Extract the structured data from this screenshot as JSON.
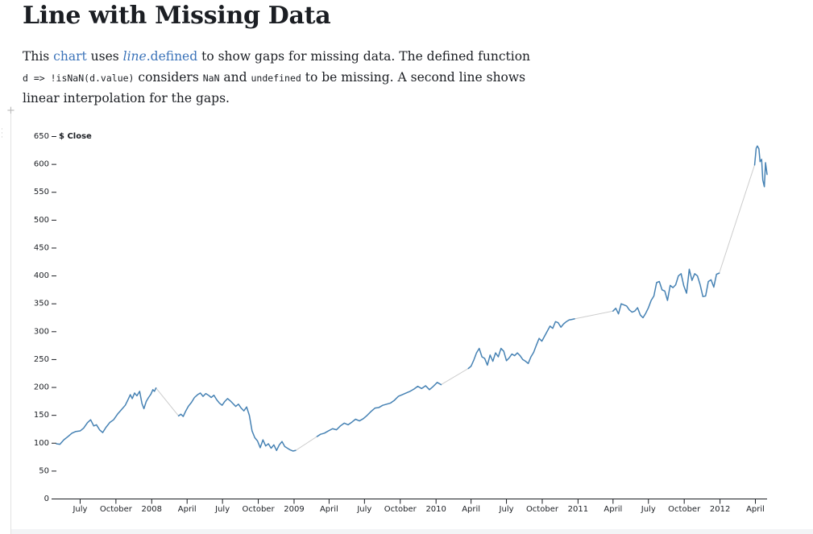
{
  "page": {
    "title": "Line with Missing Data",
    "intro": {
      "t1": "This ",
      "link_chart": "chart",
      "t2": " uses ",
      "link_line": "line",
      "link_defined": ".defined",
      "t3": " to show gaps for missing data. The defined function ",
      "code1": "d => !isNaN(d.value)",
      "t4": " considers ",
      "code2": "NaN",
      "t5": " and ",
      "code3": "undefined",
      "t6": " to be missing. A second line shows linear interpolation for the gaps."
    }
  },
  "chart_data": {
    "type": "line",
    "ylabel": "$ Close",
    "ylim": [
      0,
      650
    ],
    "y_ticks": [
      0,
      50,
      100,
      150,
      200,
      250,
      300,
      350,
      400,
      450,
      500,
      550,
      600,
      650
    ],
    "xlim": [
      "2007-05-01",
      "2012-05-01"
    ],
    "x_ticks": [
      {
        "date": "2007-07-01",
        "label": "July"
      },
      {
        "date": "2007-10-01",
        "label": "October"
      },
      {
        "date": "2008-01-01",
        "label": "2008"
      },
      {
        "date": "2008-04-01",
        "label": "April"
      },
      {
        "date": "2008-07-01",
        "label": "July"
      },
      {
        "date": "2008-10-01",
        "label": "October"
      },
      {
        "date": "2009-01-01",
        "label": "2009"
      },
      {
        "date": "2009-04-01",
        "label": "April"
      },
      {
        "date": "2009-07-01",
        "label": "July"
      },
      {
        "date": "2009-10-01",
        "label": "October"
      },
      {
        "date": "2010-01-01",
        "label": "2010"
      },
      {
        "date": "2010-04-01",
        "label": "April"
      },
      {
        "date": "2010-07-01",
        "label": "July"
      },
      {
        "date": "2010-10-01",
        "label": "October"
      },
      {
        "date": "2011-01-01",
        "label": "2011"
      },
      {
        "date": "2011-04-01",
        "label": "April"
      },
      {
        "date": "2011-07-01",
        "label": "July"
      },
      {
        "date": "2011-10-01",
        "label": "October"
      },
      {
        "date": "2012-01-01",
        "label": "2012"
      },
      {
        "date": "2012-04-01",
        "label": "April"
      }
    ],
    "colors": {
      "line": "#4682b4",
      "interpolation": "#cccccc",
      "axis": "#1b1e23"
    },
    "segments": [
      [
        [
          "2007-05-01",
          99
        ],
        [
          "2007-05-10",
          98
        ],
        [
          "2007-05-20",
          106
        ],
        [
          "2007-05-31",
          112
        ],
        [
          "2007-06-10",
          118
        ],
        [
          "2007-06-20",
          121
        ],
        [
          "2007-07-01",
          122
        ],
        [
          "2007-07-10",
          127
        ],
        [
          "2007-07-20",
          137
        ],
        [
          "2007-07-28",
          142
        ],
        [
          "2007-08-05",
          131
        ],
        [
          "2007-08-12",
          133
        ],
        [
          "2007-08-20",
          124
        ],
        [
          "2007-08-28",
          119
        ],
        [
          "2007-09-05",
          128
        ],
        [
          "2007-09-15",
          137
        ],
        [
          "2007-09-25",
          142
        ],
        [
          "2007-10-05",
          152
        ],
        [
          "2007-10-15",
          160
        ],
        [
          "2007-10-25",
          168
        ],
        [
          "2007-11-01",
          178
        ],
        [
          "2007-11-07",
          187
        ],
        [
          "2007-11-12",
          180
        ],
        [
          "2007-11-18",
          190
        ],
        [
          "2007-11-24",
          185
        ],
        [
          "2007-12-01",
          193
        ],
        [
          "2007-12-07",
          171
        ],
        [
          "2007-12-12",
          162
        ],
        [
          "2007-12-18",
          175
        ],
        [
          "2007-12-24",
          182
        ],
        [
          "2007-12-30",
          188
        ],
        [
          "2008-01-04",
          196
        ],
        [
          "2008-01-08",
          193
        ],
        [
          "2008-01-12",
          199
        ]
      ],
      [
        [
          "2008-03-10",
          149
        ],
        [
          "2008-03-16",
          152
        ],
        [
          "2008-03-22",
          148
        ],
        [
          "2008-03-28",
          157
        ],
        [
          "2008-04-04",
          166
        ],
        [
          "2008-04-12",
          173
        ],
        [
          "2008-04-20",
          182
        ],
        [
          "2008-04-28",
          187
        ],
        [
          "2008-05-05",
          190
        ],
        [
          "2008-05-12",
          184
        ],
        [
          "2008-05-19",
          189
        ],
        [
          "2008-05-26",
          186
        ],
        [
          "2008-06-02",
          182
        ],
        [
          "2008-06-09",
          186
        ],
        [
          "2008-06-16",
          178
        ],
        [
          "2008-06-23",
          172
        ],
        [
          "2008-06-30",
          168
        ],
        [
          "2008-07-07",
          175
        ],
        [
          "2008-07-14",
          180
        ],
        [
          "2008-07-21",
          176
        ],
        [
          "2008-07-28",
          171
        ],
        [
          "2008-08-04",
          166
        ],
        [
          "2008-08-11",
          170
        ],
        [
          "2008-08-18",
          163
        ],
        [
          "2008-08-25",
          158
        ],
        [
          "2008-09-01",
          165
        ],
        [
          "2008-09-08",
          150
        ],
        [
          "2008-09-15",
          122
        ],
        [
          "2008-09-22",
          110
        ],
        [
          "2008-09-29",
          104
        ],
        [
          "2008-10-06",
          92
        ],
        [
          "2008-10-13",
          106
        ],
        [
          "2008-10-20",
          95
        ],
        [
          "2008-10-27",
          99
        ],
        [
          "2008-11-03",
          91
        ],
        [
          "2008-11-10",
          97
        ],
        [
          "2008-11-17",
          87
        ],
        [
          "2008-11-24",
          97
        ],
        [
          "2008-12-01",
          103
        ],
        [
          "2008-12-08",
          94
        ],
        [
          "2008-12-15",
          91
        ],
        [
          "2008-12-22",
          88
        ],
        [
          "2008-12-29",
          86
        ],
        [
          "2009-01-05",
          87
        ]
      ],
      [
        [
          "2009-03-01",
          112
        ],
        [
          "2009-03-10",
          116
        ],
        [
          "2009-03-20",
          118
        ],
        [
          "2009-03-30",
          122
        ],
        [
          "2009-04-10",
          126
        ],
        [
          "2009-04-20",
          124
        ],
        [
          "2009-04-30",
          131
        ],
        [
          "2009-05-10",
          136
        ],
        [
          "2009-05-20",
          133
        ],
        [
          "2009-05-30",
          138
        ],
        [
          "2009-06-08",
          143
        ],
        [
          "2009-06-18",
          140
        ],
        [
          "2009-06-28",
          144
        ],
        [
          "2009-07-08",
          150
        ],
        [
          "2009-07-18",
          157
        ],
        [
          "2009-07-28",
          163
        ],
        [
          "2009-08-07",
          164
        ],
        [
          "2009-08-17",
          168
        ],
        [
          "2009-08-27",
          170
        ],
        [
          "2009-09-06",
          172
        ],
        [
          "2009-09-16",
          177
        ],
        [
          "2009-09-26",
          184
        ],
        [
          "2009-10-06",
          187
        ],
        [
          "2009-10-16",
          190
        ],
        [
          "2009-10-26",
          193
        ],
        [
          "2009-11-05",
          197
        ],
        [
          "2009-11-15",
          202
        ],
        [
          "2009-11-25",
          198
        ],
        [
          "2009-12-05",
          203
        ],
        [
          "2009-12-15",
          196
        ],
        [
          "2009-12-25",
          202
        ],
        [
          "2010-01-04",
          209
        ],
        [
          "2010-01-14",
          205
        ]
      ],
      [
        [
          "2010-03-25",
          234
        ],
        [
          "2010-04-01",
          238
        ],
        [
          "2010-04-08",
          249
        ],
        [
          "2010-04-15",
          262
        ],
        [
          "2010-04-22",
          270
        ],
        [
          "2010-04-29",
          255
        ],
        [
          "2010-05-06",
          252
        ],
        [
          "2010-05-13",
          240
        ],
        [
          "2010-05-20",
          258
        ],
        [
          "2010-05-27",
          247
        ],
        [
          "2010-06-03",
          262
        ],
        [
          "2010-06-10",
          255
        ],
        [
          "2010-06-17",
          270
        ],
        [
          "2010-06-24",
          265
        ],
        [
          "2010-07-01",
          248
        ],
        [
          "2010-07-08",
          253
        ],
        [
          "2010-07-15",
          260
        ],
        [
          "2010-07-22",
          257
        ],
        [
          "2010-07-29",
          262
        ],
        [
          "2010-08-05",
          257
        ],
        [
          "2010-08-12",
          250
        ],
        [
          "2010-08-19",
          247
        ],
        [
          "2010-08-26",
          243
        ],
        [
          "2010-09-02",
          255
        ],
        [
          "2010-09-09",
          263
        ],
        [
          "2010-09-16",
          276
        ],
        [
          "2010-09-23",
          288
        ],
        [
          "2010-09-30",
          283
        ],
        [
          "2010-10-07",
          292
        ],
        [
          "2010-10-14",
          301
        ],
        [
          "2010-10-21",
          310
        ],
        [
          "2010-10-28",
          306
        ],
        [
          "2010-11-04",
          318
        ],
        [
          "2010-11-11",
          316
        ],
        [
          "2010-11-18",
          308
        ],
        [
          "2010-11-25",
          314
        ],
        [
          "2010-12-02",
          318
        ],
        [
          "2010-12-09",
          321
        ],
        [
          "2010-12-16",
          322
        ],
        [
          "2010-12-23",
          323
        ]
      ],
      [
        [
          "2011-04-01",
          337
        ],
        [
          "2011-04-08",
          342
        ],
        [
          "2011-04-15",
          332
        ],
        [
          "2011-04-22",
          350
        ],
        [
          "2011-04-29",
          348
        ],
        [
          "2011-05-06",
          346
        ],
        [
          "2011-05-13",
          339
        ],
        [
          "2011-05-20",
          335
        ],
        [
          "2011-05-27",
          337
        ],
        [
          "2011-06-03",
          343
        ],
        [
          "2011-06-10",
          330
        ],
        [
          "2011-06-17",
          325
        ],
        [
          "2011-06-24",
          333
        ],
        [
          "2011-07-01",
          343
        ],
        [
          "2011-07-08",
          356
        ],
        [
          "2011-07-15",
          364
        ],
        [
          "2011-07-22",
          388
        ],
        [
          "2011-07-29",
          390
        ],
        [
          "2011-08-05",
          375
        ],
        [
          "2011-08-12",
          373
        ],
        [
          "2011-08-19",
          356
        ],
        [
          "2011-08-26",
          383
        ],
        [
          "2011-09-02",
          379
        ],
        [
          "2011-09-09",
          384
        ],
        [
          "2011-09-16",
          400
        ],
        [
          "2011-09-23",
          404
        ],
        [
          "2011-09-30",
          382
        ],
        [
          "2011-10-07",
          369
        ],
        [
          "2011-10-14",
          412
        ],
        [
          "2011-10-21",
          392
        ],
        [
          "2011-10-28",
          404
        ],
        [
          "2011-11-04",
          400
        ],
        [
          "2011-11-11",
          384
        ],
        [
          "2011-11-18",
          363
        ],
        [
          "2011-11-25",
          364
        ],
        [
          "2011-12-02",
          390
        ],
        [
          "2011-12-09",
          393
        ],
        [
          "2011-12-16",
          380
        ],
        [
          "2011-12-23",
          403
        ],
        [
          "2011-12-30",
          405
        ]
      ],
      [
        [
          "2012-03-30",
          599
        ],
        [
          "2012-04-03",
          629
        ],
        [
          "2012-04-06",
          633
        ],
        [
          "2012-04-10",
          628
        ],
        [
          "2012-04-13",
          605
        ],
        [
          "2012-04-17",
          609
        ],
        [
          "2012-04-20",
          572
        ],
        [
          "2012-04-24",
          560
        ],
        [
          "2012-04-27",
          603
        ],
        [
          "2012-05-01",
          582
        ]
      ]
    ]
  }
}
